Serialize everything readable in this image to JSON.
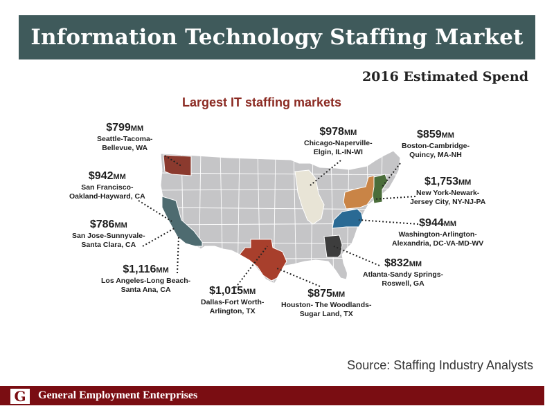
{
  "header": {
    "title": "Information Technology Staffing Market"
  },
  "subtitle": "2016 Estimated Spend",
  "map": {
    "title": "Largest IT staffing markets"
  },
  "markets": [
    {
      "amount": "$799",
      "unit": "MM",
      "line1": "Seattle-Tacoma-",
      "line2": "Bellevue, WA",
      "color": "#8b3a2e"
    },
    {
      "amount": "$978",
      "unit": "MM",
      "line1": "Chicago-Naperville-",
      "line2": "Elgin, IL-IN-WI",
      "color": "#e8e4d6"
    },
    {
      "amount": "$859",
      "unit": "MM",
      "line1": "Boston-Cambridge-",
      "line2": "Quincy, MA-NH",
      "color": "#4a6d3a"
    },
    {
      "amount": "$942",
      "unit": "MM",
      "line1": "San Francisco-",
      "line2": "Oakland-Hayward, CA",
      "color": "#4e6b70"
    },
    {
      "amount": "$1,753",
      "unit": "MM",
      "line1": "New York-Newark-",
      "line2": "Jersey City, NY-NJ-PA",
      "color": "#c98446"
    },
    {
      "amount": "$786",
      "unit": "MM",
      "line1": "San Jose-Sunnyvale-",
      "line2": "Santa Clara, CA",
      "color": "#4e6b70"
    },
    {
      "amount": "$944",
      "unit": "MM",
      "line1": "Washington-Arlington-",
      "line2": "Alexandria, DC-VA-MD-WV",
      "color": "#2a6a94"
    },
    {
      "amount": "$1,116",
      "unit": "MM",
      "line1": "Los Angeles-Long Beach-",
      "line2": "Santa Ana, CA",
      "color": "#4e6b70"
    },
    {
      "amount": "$832",
      "unit": "MM",
      "line1": "Atlanta-Sandy Springs-",
      "line2": "Roswell, GA",
      "color": "#3d3d3d"
    },
    {
      "amount": "$1,015",
      "unit": "MM",
      "line1": "Dallas-Fort Worth-",
      "line2": "Arlington, TX",
      "color": "#a83f2c"
    },
    {
      "amount": "$875",
      "unit": "MM",
      "line1": "Houston- The Woodlands-",
      "line2": "Sugar Land, TX",
      "color": "#a83f2c"
    }
  ],
  "source": "Source: Staffing Industry Analysts",
  "footer": {
    "logo_letter": "G",
    "company": "General Employment  Enterprises"
  },
  "colors": {
    "title_bar": "#3f5a5b",
    "footer_bar": "#7a0d12",
    "map_title": "#8b2a22",
    "map_base": "#c5c5c7",
    "map_border": "#ffffff",
    "leader_line": "#222222"
  }
}
